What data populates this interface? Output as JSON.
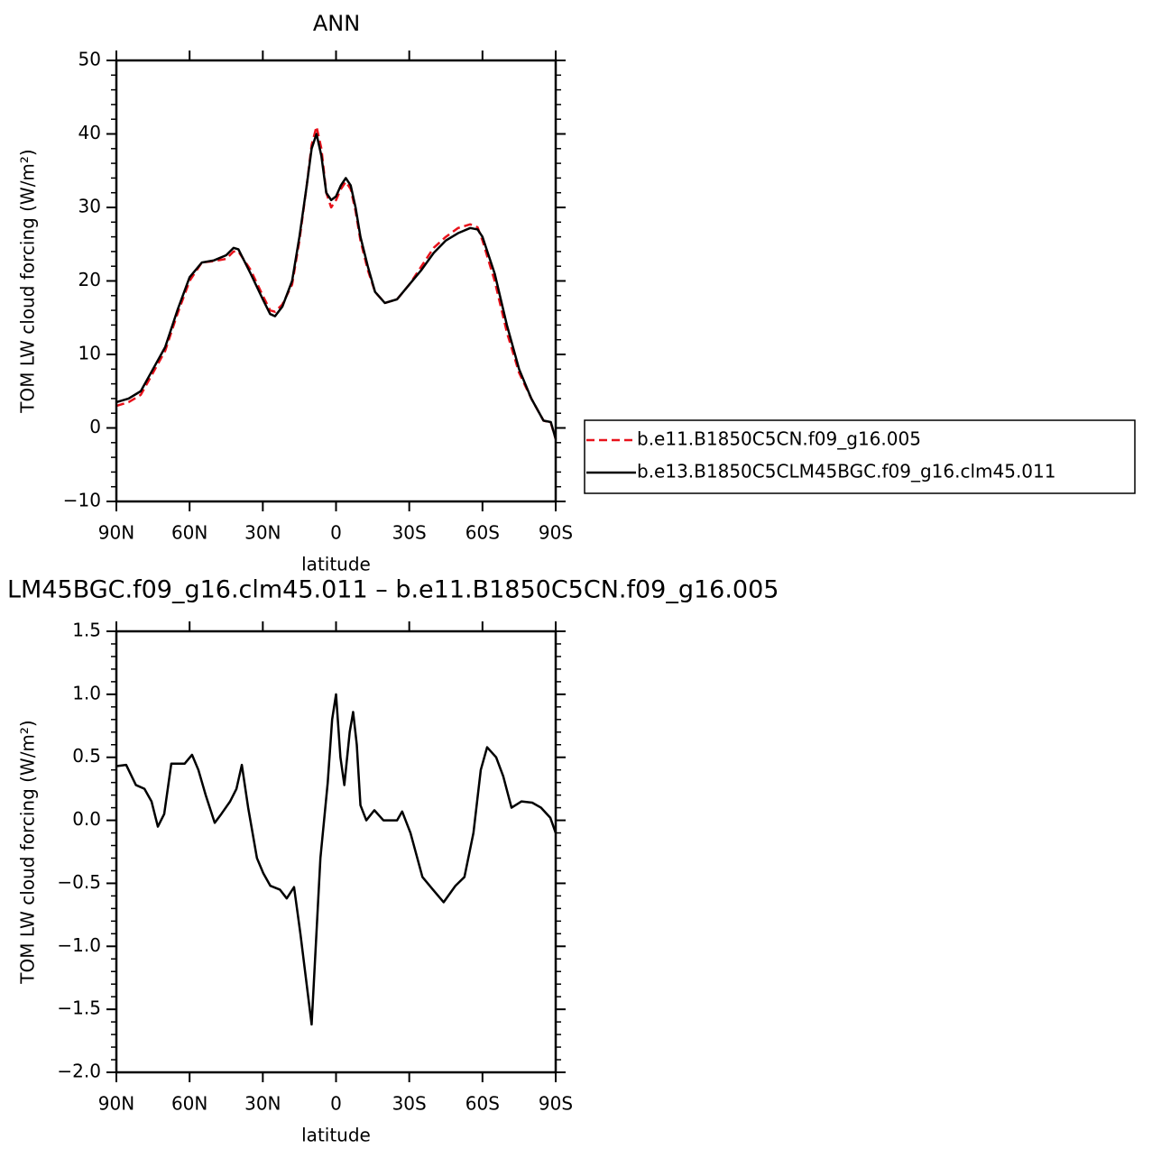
{
  "chart_data": [
    {
      "type": "line",
      "title": "ANN",
      "xlabel": "latitude",
      "ylabel": "TOM LW cloud forcing (W/m²)",
      "xlim": [
        90,
        -90
      ],
      "xticks": [
        {
          "value": 90,
          "label": "90N"
        },
        {
          "value": 60,
          "label": "60N"
        },
        {
          "value": 30,
          "label": "30N"
        },
        0,
        {
          "value": -30,
          "label": "30S"
        },
        {
          "value": -60,
          "label": "60S"
        },
        {
          "value": -90,
          "label": "90S"
        }
      ],
      "ylim": [
        -10,
        50
      ],
      "yticks": [
        {
          "value": -10,
          "label": "−10"
        },
        0,
        10,
        20,
        30,
        40,
        50
      ],
      "minor_yticks": [
        -8,
        -6,
        -4,
        -2,
        2,
        4,
        6,
        8,
        12,
        14,
        16,
        18,
        22,
        24,
        26,
        28,
        32,
        34,
        36,
        38,
        42,
        44,
        46,
        48
      ],
      "legend": "outside-right",
      "x": [
        90,
        85,
        80,
        75,
        70,
        65,
        60,
        55,
        50,
        45,
        42,
        40,
        35,
        30,
        27,
        25,
        22,
        18,
        15,
        12,
        10,
        8,
        6,
        4,
        2,
        0,
        -2,
        -4,
        -6,
        -8,
        -10,
        -13,
        -16,
        -20,
        -25,
        -30,
        -35,
        -40,
        -45,
        -50,
        -55,
        -58,
        -60,
        -65,
        -70,
        -75,
        -80,
        -85,
        -88,
        -90
      ],
      "series": [
        {
          "name": "b.e11.B1850C5CN.f09_g16.005",
          "color": "#e8121b",
          "dashed": true,
          "values": [
            3,
            3.5,
            4.5,
            7.5,
            10.5,
            15.5,
            20,
            22.5,
            22.7,
            23,
            24,
            24,
            21.5,
            18,
            16,
            15.8,
            16.8,
            19.5,
            25.5,
            33,
            38.5,
            41,
            38,
            32,
            30,
            31,
            32.5,
            33.5,
            32.5,
            29.5,
            25.5,
            21.5,
            18.5,
            17,
            17.5,
            19.5,
            22,
            24.5,
            26,
            27.2,
            27.7,
            27.3,
            25.5,
            20,
            13,
            7.5,
            4,
            1,
            0.7,
            -1.5
          ]
        },
        {
          "name": "b.e13.B1850C5CLM45BGC.f09_g16.clm45.011",
          "color": "#000000",
          "dashed": false,
          "values": [
            3.5,
            4,
            5,
            8,
            11,
            16,
            20.5,
            22.5,
            22.8,
            23.5,
            24.5,
            24.3,
            21,
            17.5,
            15.5,
            15.2,
            16.5,
            20,
            26,
            33,
            38,
            40,
            37,
            32,
            31,
            31.5,
            33,
            34,
            33,
            30,
            26,
            22,
            18.5,
            17,
            17.5,
            19.5,
            21.5,
            23.8,
            25.5,
            26.5,
            27.2,
            27,
            26,
            21,
            14,
            8,
            4,
            1,
            0.8,
            -1.5
          ]
        }
      ]
    },
    {
      "type": "line",
      "title": "LM45BGC.f09_g16.clm45.011 – b.e11.B1850C5CN.f09_g16.005",
      "xlabel": "latitude",
      "ylabel": "TOM LW cloud forcing (W/m²)",
      "xlim": [
        90,
        -90
      ],
      "xticks": [
        {
          "value": 90,
          "label": "90N"
        },
        {
          "value": 60,
          "label": "60N"
        },
        {
          "value": 30,
          "label": "30N"
        },
        0,
        {
          "value": -30,
          "label": "30S"
        },
        {
          "value": -60,
          "label": "60S"
        },
        {
          "value": -90,
          "label": "90S"
        }
      ],
      "ylim": [
        -2,
        1.5
      ],
      "yticks": [
        {
          "value": -2,
          "label": "−2.0"
        },
        {
          "value": -1.5,
          "label": "−1.5"
        },
        {
          "value": -1,
          "label": "−1.0"
        },
        {
          "value": -0.5,
          "label": "−0.5"
        },
        {
          "value": 0,
          "label": "0.0"
        },
        0.5,
        {
          "value": 1,
          "label": "1.0"
        },
        1.5
      ],
      "minor_yticks": [
        -1.9,
        -1.8,
        -1.7,
        -1.6,
        -1.4,
        -1.3,
        -1.2,
        -1.1,
        -0.9,
        -0.8,
        -0.7,
        -0.6,
        -0.4,
        -0.3,
        -0.2,
        -0.1,
        0.1,
        0.2,
        0.3,
        0.4,
        0.6,
        0.7,
        0.8,
        0.9,
        1.1,
        1.2,
        1.3,
        1.4
      ],
      "x": [
        90,
        86,
        82,
        78.5,
        75.6,
        73,
        70.4,
        67.5,
        63.8,
        62,
        59,
        56.4,
        53.4,
        49.7,
        47,
        43.4,
        40.8,
        38.6,
        36,
        32.4,
        29.8,
        26.9,
        23,
        20.2,
        17.2,
        14.6,
        10,
        6.4,
        3.4,
        1.6,
        0,
        -1.8,
        -3.4,
        -5.6,
        -7,
        -8.5,
        -10,
        -12.4,
        -15.7,
        -19.4,
        -25,
        -27.1,
        -30.5,
        -35.4,
        -39.7,
        -44.1,
        -48.9,
        -52.6,
        -56.3,
        -59.3,
        -61.9,
        -65.6,
        -68.5,
        -71.9,
        -76,
        -80.4,
        -84,
        -87.8,
        -90
      ],
      "series": [
        {
          "color": "#000000",
          "dashed": false,
          "values": [
            0.43,
            0.44,
            0.28,
            0.25,
            0.15,
            -0.05,
            0.05,
            0.45,
            0.45,
            0.45,
            0.52,
            0.4,
            0.2,
            -0.02,
            0.05,
            0.15,
            0.25,
            0.44,
            0.1,
            -0.3,
            -0.42,
            -0.52,
            -0.55,
            -0.62,
            -0.53,
            -0.9,
            -1.62,
            -0.3,
            0.3,
            0.8,
            1,
            0.5,
            0.28,
            0.7,
            0.86,
            0.6,
            0.12,
            0,
            0.08,
            0,
            0,
            0.07,
            -0.1,
            -0.45,
            -0.55,
            -0.65,
            -0.52,
            -0.45,
            -0.1,
            0.4,
            0.58,
            0.5,
            0.35,
            0.1,
            0.15,
            0.14,
            0.1,
            0.02,
            -0.1
          ]
        }
      ]
    }
  ]
}
